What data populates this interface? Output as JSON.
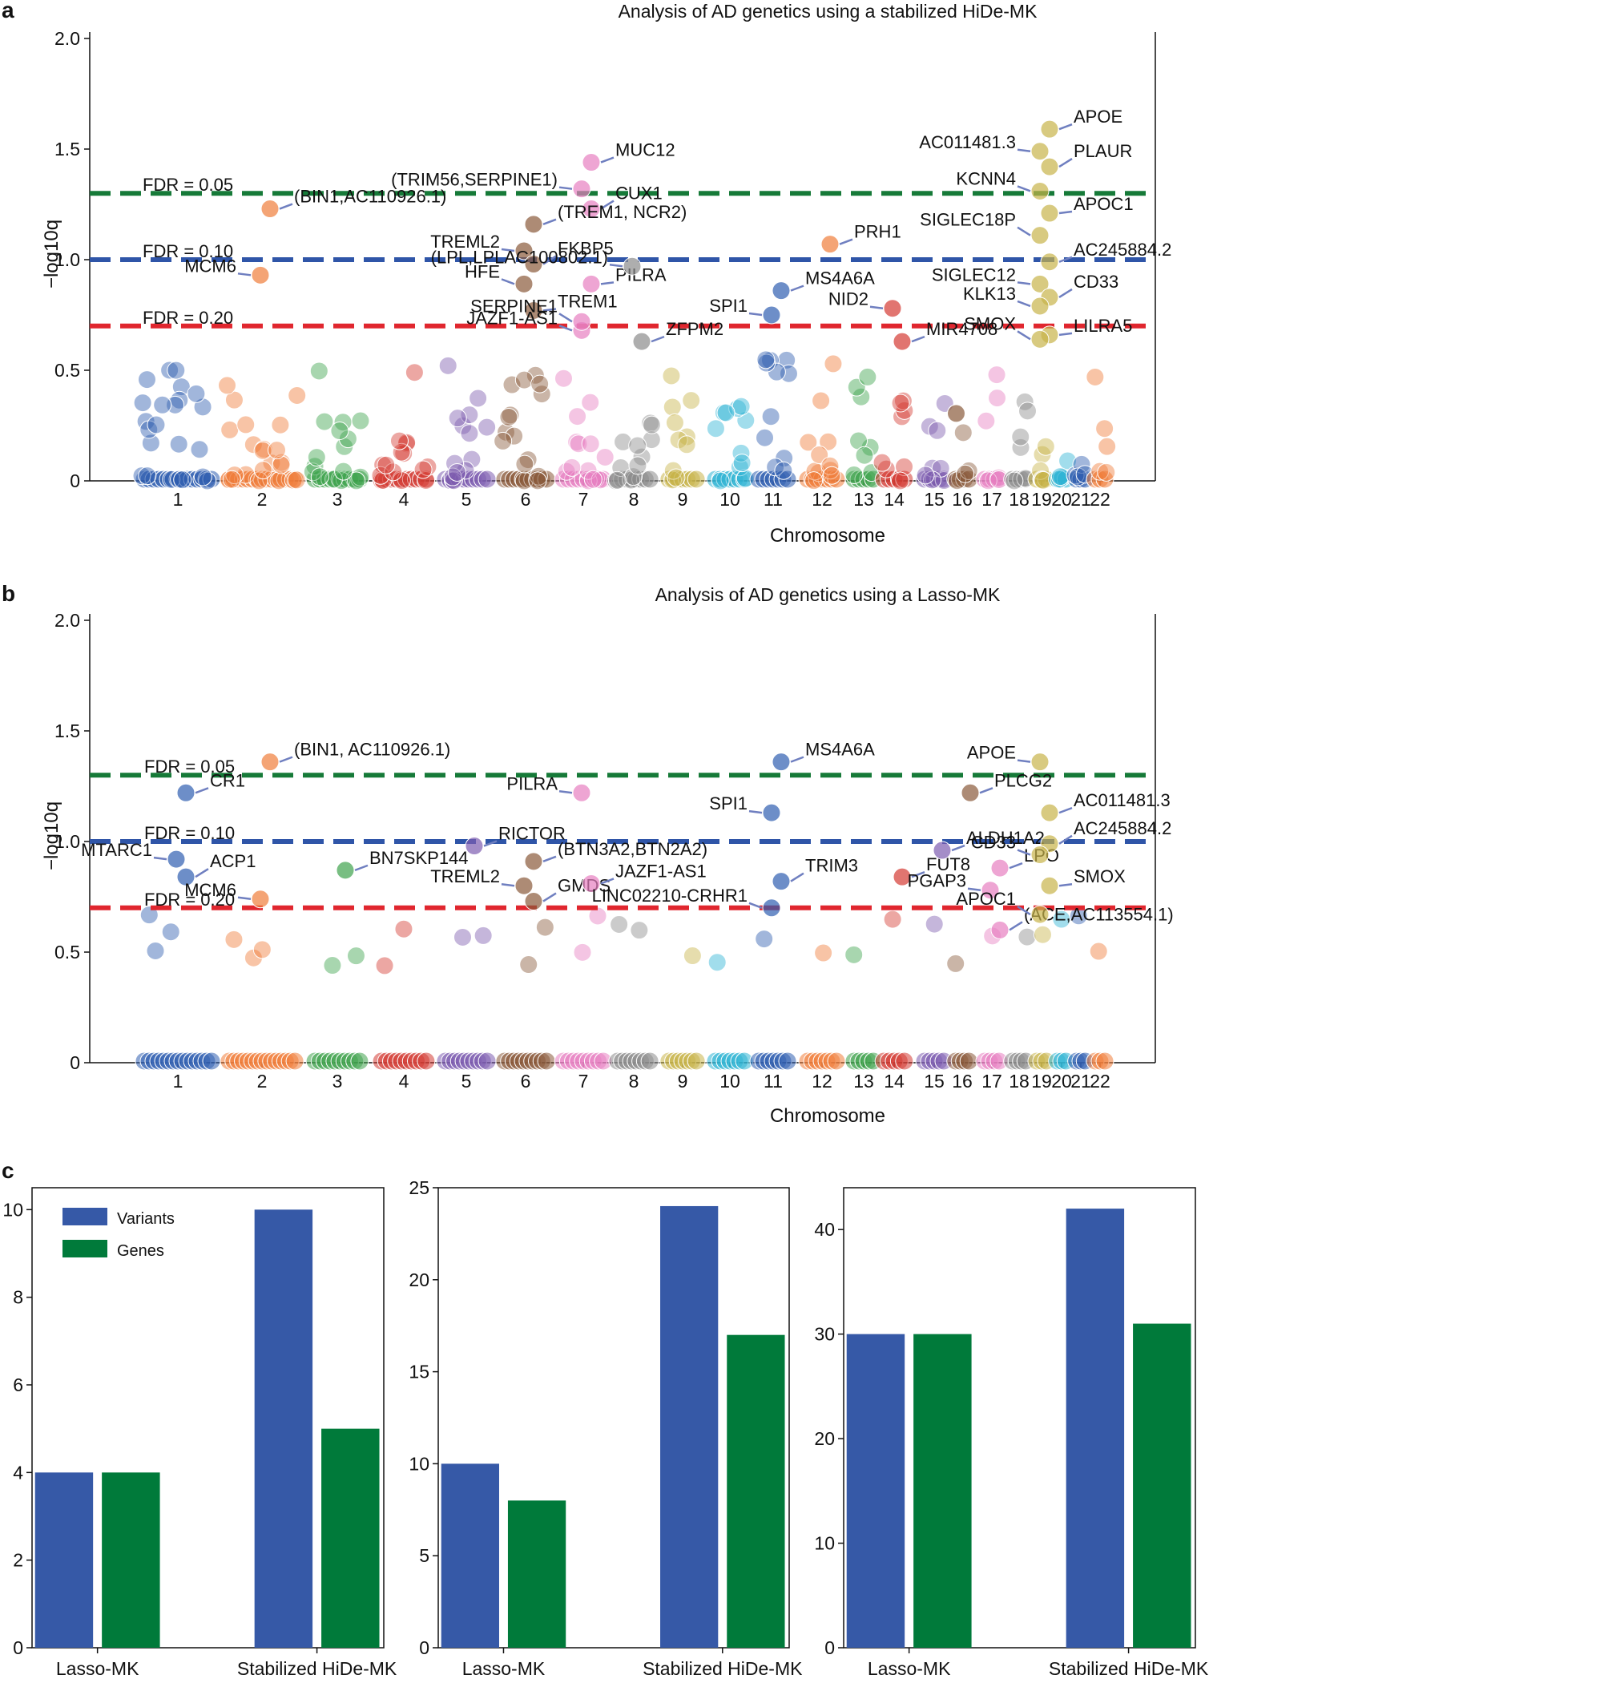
{
  "colors": {
    "chromosomes": [
      "#2f5eb0",
      "#f07d3a",
      "#3fa34d",
      "#d43b33",
      "#7e5db0",
      "#8a5a3b",
      "#e77fc1",
      "#8c8c8c",
      "#c8b44a",
      "#2fb4d4"
    ],
    "fdr_005": "#167a38",
    "fdr_010": "#2f55a8",
    "fdr_020": "#e0262e",
    "arrow": "#6f7fc0",
    "variants": "#3659a7",
    "genes": "#007a3a"
  },
  "chart_data": [
    {
      "panel": "a",
      "type": "scatter",
      "title": "Analysis of AD genetics using a stabilized HiDe-MK",
      "xlabel": "Chromosome",
      "ylabel": "−log10q",
      "ylim": [
        0,
        2.0
      ],
      "yticks": [
        "0",
        "0.5",
        "1.0",
        "1.5",
        "2.0"
      ],
      "chromosome_labels": [
        "1",
        "2",
        "3",
        "4",
        "5",
        "6",
        "7",
        "8",
        "9",
        "10",
        "11",
        "12",
        "13",
        "14",
        "15",
        "16",
        "17",
        "18",
        "19",
        "20",
        "21",
        "22"
      ],
      "chromosome_centers": [
        0.5,
        1.5,
        2.5,
        3.5,
        4.5,
        5.5,
        6.5,
        7.5,
        8.5,
        9.5,
        10.5,
        11.5,
        12.5,
        13.5,
        14.5,
        15.5,
        16.5,
        17.5,
        18.5,
        19.5,
        20.5,
        21.5
      ],
      "thresholds": [
        {
          "label": "FDR = 0.05",
          "value": 1.3
        },
        {
          "label": "FDR = 0.10",
          "value": 1.0
        },
        {
          "label": "FDR = 0.20",
          "value": 0.7
        }
      ],
      "annotations": [
        {
          "text": "APOE",
          "chr": 19,
          "y": 1.59
        },
        {
          "text": "AC011481.3",
          "chr": 19,
          "y": 1.49
        },
        {
          "text": "PLAUR",
          "chr": 19,
          "y": 1.42
        },
        {
          "text": "KCNN4",
          "chr": 19,
          "y": 1.31
        },
        {
          "text": "APOC1",
          "chr": 19,
          "y": 1.21
        },
        {
          "text": "SIGLEC18P",
          "chr": 19,
          "y": 1.11
        },
        {
          "text": "AC245884.2",
          "chr": 19,
          "y": 0.99
        },
        {
          "text": "SIGLEC12",
          "chr": 19,
          "y": 0.89
        },
        {
          "text": "CD33",
          "chr": 19,
          "y": 0.83
        },
        {
          "text": "KLK13",
          "chr": 19,
          "y": 0.79
        },
        {
          "text": "LILRA5",
          "chr": 19,
          "y": 0.66
        },
        {
          "text": "SMOX",
          "chr": 19,
          "y": 0.64
        },
        {
          "text": "MUC12",
          "chr": 7,
          "y": 1.44
        },
        {
          "text": "(TRIM56,SERPINE1)",
          "chr": 7,
          "y": 1.32
        },
        {
          "text": "CUX1",
          "chr": 7,
          "y": 1.23
        },
        {
          "text": "(BIN1,AC110926.1)",
          "chr": 2,
          "y": 1.23
        },
        {
          "text": "MCM6",
          "chr": 2,
          "y": 0.93
        },
        {
          "text": "(TREM1, NCR2)",
          "chr": 6,
          "y": 1.16
        },
        {
          "text": "TREML2",
          "chr": 6,
          "y": 1.04
        },
        {
          "text": "FKBP5",
          "chr": 6,
          "y": 0.98
        },
        {
          "text": "HFE",
          "chr": 6,
          "y": 0.89
        },
        {
          "text": "TREM1",
          "chr": 6,
          "y": 0.77
        },
        {
          "text": "JAZF1-AS1",
          "chr": 7,
          "y": 0.68
        },
        {
          "text": "PILRA",
          "chr": 7,
          "y": 0.89
        },
        {
          "text": "SERPINE1",
          "chr": 7,
          "y": 0.72
        },
        {
          "text": "ZFPM2",
          "chr": 8,
          "y": 0.63
        },
        {
          "text": "(LPL,LPLAC100802.1)",
          "chr": 8,
          "y": 0.97
        },
        {
          "text": "PRH1",
          "chr": 12,
          "y": 1.07
        },
        {
          "text": "MS4A6A",
          "chr": 11,
          "y": 0.86
        },
        {
          "text": "SPI1",
          "chr": 11,
          "y": 0.75
        },
        {
          "text": "MIR4708",
          "chr": 14,
          "y": 0.63
        },
        {
          "text": "NID2",
          "chr": 14,
          "y": 0.78
        }
      ]
    },
    {
      "panel": "b",
      "type": "scatter",
      "title": "Analysis of AD genetics using a Lasso-MK",
      "xlabel": "Chromosome",
      "ylabel": "−log10q",
      "ylim": [
        0,
        2.0
      ],
      "yticks": [
        "0",
        "0.5",
        "1.0",
        "1.5",
        "2.0"
      ],
      "chromosome_labels": [
        "1",
        "2",
        "3",
        "4",
        "5",
        "6",
        "7",
        "8",
        "9",
        "10",
        "11",
        "12",
        "13",
        "14",
        "15",
        "16",
        "17",
        "18",
        "19",
        "20",
        "21",
        "22"
      ],
      "thresholds": [
        {
          "label": "FDR = 0.05",
          "value": 1.3
        },
        {
          "label": "FDR = 0.10",
          "value": 1.0
        },
        {
          "label": "FDR = 0.20",
          "value": 0.7
        }
      ],
      "annotations": [
        {
          "text": "(BIN1, AC110926.1)",
          "chr": 2,
          "y": 1.36
        },
        {
          "text": "CR1",
          "chr": 1,
          "y": 1.22
        },
        {
          "text": "MTARC1",
          "chr": 1,
          "y": 0.92
        },
        {
          "text": "ACP1",
          "chr": 1,
          "y": 0.84
        },
        {
          "text": "MCM6",
          "chr": 2,
          "y": 0.74
        },
        {
          "text": "BN7SKP144",
          "chr": 3,
          "y": 0.87
        },
        {
          "text": "RICTOR",
          "chr": 5,
          "y": 0.98
        },
        {
          "text": "(BTN3A2,BTN2A2)",
          "chr": 6,
          "y": 0.91
        },
        {
          "text": "TREML2",
          "chr": 6,
          "y": 0.8
        },
        {
          "text": "GMDS",
          "chr": 6,
          "y": 0.73
        },
        {
          "text": "JAZF1-AS1",
          "chr": 7,
          "y": 0.81
        },
        {
          "text": "PILRA",
          "chr": 7,
          "y": 1.22
        },
        {
          "text": "MS4A6A",
          "chr": 11,
          "y": 1.36
        },
        {
          "text": "SPI1",
          "chr": 11,
          "y": 1.13
        },
        {
          "text": "TRIM3",
          "chr": 11,
          "y": 0.82
        },
        {
          "text": "LINC02210-CRHR1",
          "chr": 11,
          "y": 0.7
        },
        {
          "text": "FUT8",
          "chr": 14,
          "y": 0.84
        },
        {
          "text": "PLCG2",
          "chr": 16,
          "y": 1.22
        },
        {
          "text": "AC011481.3",
          "chr": 19,
          "y": 1.13
        },
        {
          "text": "ALDH1A2",
          "chr": 15,
          "y": 0.96
        },
        {
          "text": "LPO",
          "chr": 17,
          "y": 0.88
        },
        {
          "text": "PGAP3",
          "chr": 17,
          "y": 0.78
        },
        {
          "text": "(ACE,AC113554.1)",
          "chr": 17,
          "y": 0.6
        },
        {
          "text": "APOE",
          "chr": 19,
          "y": 1.36
        },
        {
          "text": "AC245884.2",
          "chr": 19,
          "y": 0.99
        },
        {
          "text": "CD33",
          "chr": 19,
          "y": 0.94
        },
        {
          "text": "SMOX",
          "chr": 19,
          "y": 0.8
        },
        {
          "text": "APOC1",
          "chr": 19,
          "y": 0.67
        }
      ]
    },
    {
      "panel": "c1",
      "type": "bar",
      "categories": [
        "Lasso-MK",
        "Stabilized HiDe-MK"
      ],
      "series": [
        {
          "name": "Variants",
          "values": [
            4,
            10
          ]
        },
        {
          "name": "Genes",
          "values": [
            4,
            5
          ]
        }
      ],
      "ylim": [
        0,
        10.5
      ],
      "yticks": [
        0,
        2,
        4,
        6,
        8,
        10
      ],
      "legend": "top-left"
    },
    {
      "panel": "c2",
      "type": "bar",
      "categories": [
        "Lasso-MK",
        "Stabilized HiDe-MK"
      ],
      "series": [
        {
          "name": "Variants",
          "values": [
            10,
            24
          ]
        },
        {
          "name": "Genes",
          "values": [
            8,
            17
          ]
        }
      ],
      "ylim": [
        0,
        25
      ],
      "yticks": [
        0,
        5,
        10,
        15,
        20,
        25
      ]
    },
    {
      "panel": "c3",
      "type": "bar",
      "categories": [
        "Lasso-MK",
        "Stabilized HiDe-MK"
      ],
      "series": [
        {
          "name": "Variants",
          "values": [
            30,
            42
          ]
        },
        {
          "name": "Genes",
          "values": [
            30,
            31
          ]
        }
      ],
      "ylim": [
        0,
        44
      ],
      "yticks": [
        0,
        10,
        20,
        30,
        40
      ]
    }
  ]
}
